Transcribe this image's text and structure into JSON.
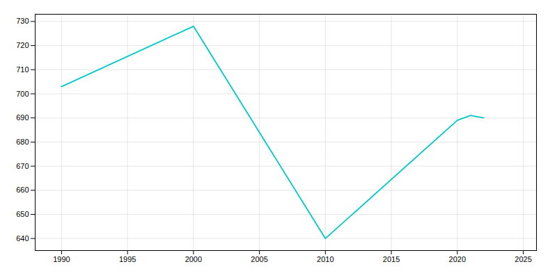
{
  "chart_data": {
    "type": "line",
    "x": [
      1990,
      2000,
      2010,
      2020,
      2021,
      2022
    ],
    "values": [
      703,
      728,
      640,
      689,
      691,
      690
    ],
    "color": "#00c8c8",
    "xlim": [
      1988,
      2026
    ],
    "ylim": [
      635,
      733
    ],
    "xticks": [
      1990,
      1995,
      2000,
      2005,
      2010,
      2015,
      2020,
      2025
    ],
    "yticks": [
      640,
      650,
      660,
      670,
      680,
      690,
      700,
      710,
      720,
      730
    ],
    "grid": true
  }
}
